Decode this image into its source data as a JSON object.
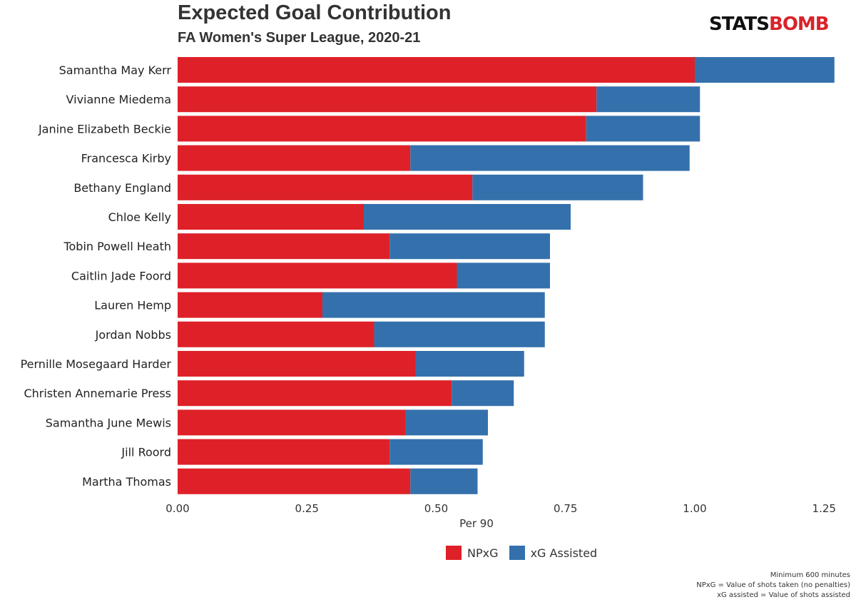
{
  "brand": {
    "part1": "STATS",
    "part2": "BOMB"
  },
  "colors": {
    "npxg": "#de2128",
    "xga": "#3471ac"
  },
  "notes": [
    "Minimum 600 minutes",
    "NPxG = Value of shots taken (no penalties)",
    "xG assisted = Value of shots assisted"
  ],
  "chart_data": {
    "type": "bar",
    "orientation": "horizontal",
    "stacked": true,
    "title": "Expected Goal Contribution",
    "subtitle": "FA Women's Super League, 2020-21",
    "xlabel": "Per 90",
    "ylabel": "",
    "xlim": [
      0,
      1.28
    ],
    "xticks": [
      "0.00",
      "0.25",
      "0.50",
      "0.75",
      "1.00",
      "1.25"
    ],
    "xtick_values": [
      0,
      0.25,
      0.5,
      0.75,
      1.0,
      1.25
    ],
    "grid": false,
    "legend_position": "bottom",
    "categories": [
      "Samantha May Kerr",
      "Vivianne Miedema",
      "Janine Elizabeth Beckie",
      "Francesca Kirby",
      "Bethany England",
      "Chloe Kelly",
      "Tobin Powell Heath",
      "Caitlin Jade Foord",
      "Lauren Hemp",
      "Jordan Nobbs",
      "Pernille Mosegaard Harder",
      "Christen Annemarie Press",
      "Samantha June Mewis",
      "Jill Roord",
      "Martha Thomas"
    ],
    "series": [
      {
        "name": "NPxG",
        "values": [
          1.0,
          0.81,
          0.79,
          0.45,
          0.57,
          0.36,
          0.41,
          0.54,
          0.28,
          0.38,
          0.46,
          0.53,
          0.44,
          0.41,
          0.45
        ]
      },
      {
        "name": "xG Assisted",
        "values": [
          0.27,
          0.2,
          0.22,
          0.54,
          0.33,
          0.4,
          0.31,
          0.18,
          0.43,
          0.33,
          0.21,
          0.12,
          0.16,
          0.18,
          0.13
        ]
      }
    ]
  }
}
